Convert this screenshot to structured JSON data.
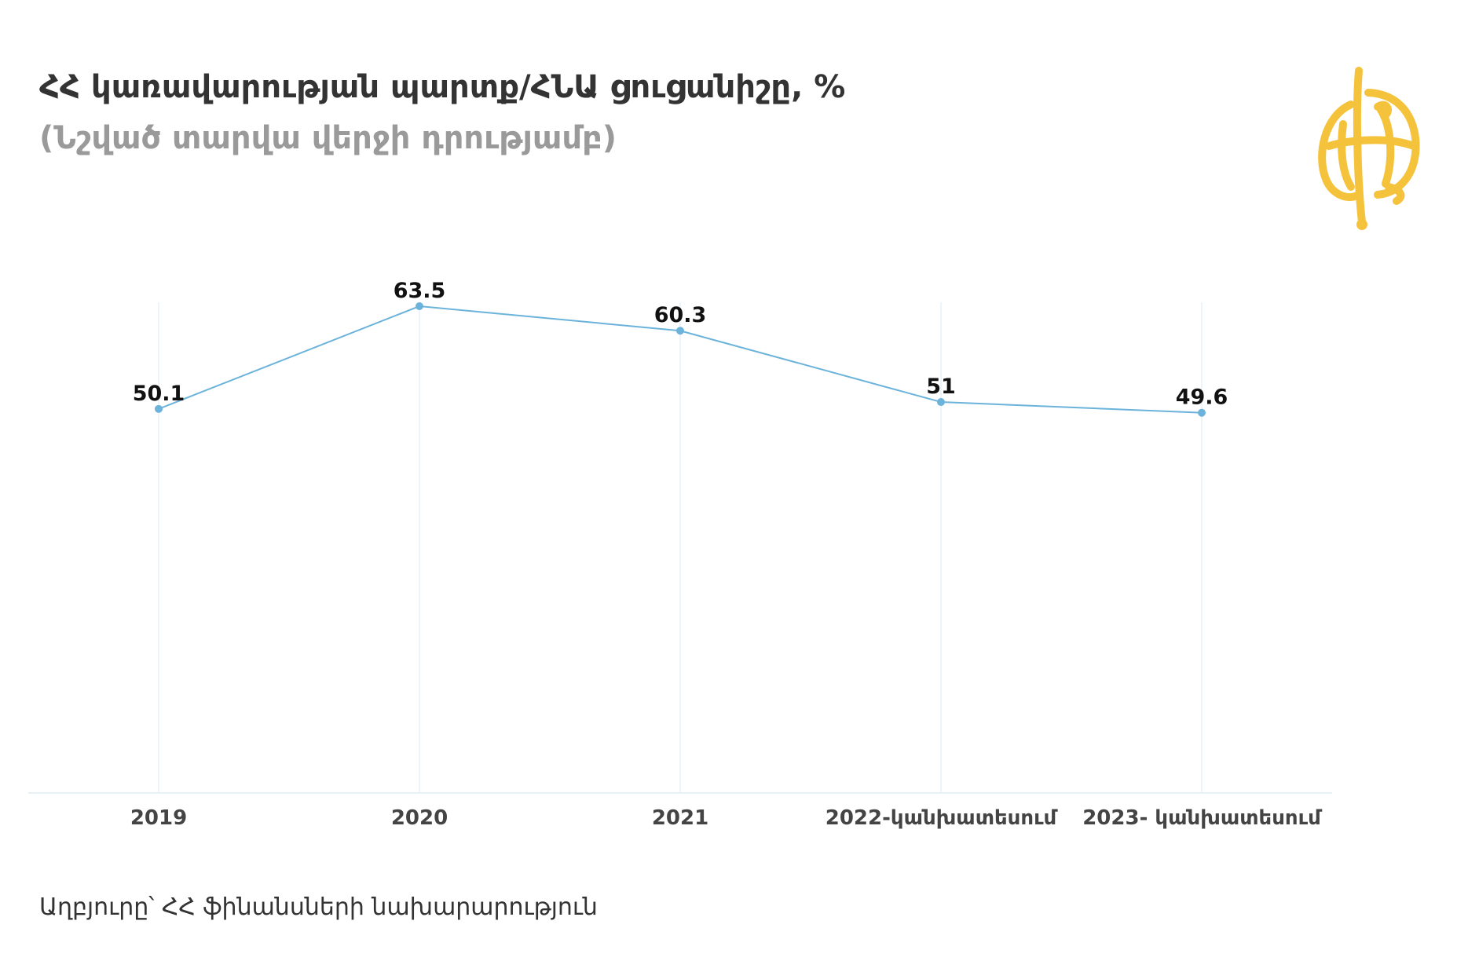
{
  "header": {
    "title": "ՀՀ կառավարության պարտք/ՀՆԱ ցուցանիշը, %",
    "subtitle": "(Նշված տարվա վերջի դրությամբ)"
  },
  "footer": {
    "source": "Աղբյուրը՝ ՀՀ ֆինանսների նախարարություն"
  },
  "colors": {
    "line": "#6bb3db",
    "grid": "#e6f2f8",
    "logo": "#f5c33b",
    "title": "#333333",
    "subtitle": "#9a9a9a"
  },
  "chart_data": {
    "type": "line",
    "title": "ՀՀ կառավարության պարտք/ՀՆԱ ցուցանիշը, %",
    "subtitle": "(Նշված տարվա վերջի դրությամբ)",
    "categories": [
      "2019",
      "2020",
      "2021",
      "2022-կանխատեսում",
      "2023- կանխատեսում"
    ],
    "series": [
      {
        "values": [
          50.1,
          63.5,
          60.3,
          51,
          49.6
        ],
        "labels": [
          "50.1",
          "63.5",
          "60.3",
          "51",
          "49.6"
        ]
      }
    ],
    "xlabel": "",
    "ylabel": "",
    "ylim": [
      0,
      63.5
    ],
    "grid": "vertical",
    "legend": "none"
  }
}
